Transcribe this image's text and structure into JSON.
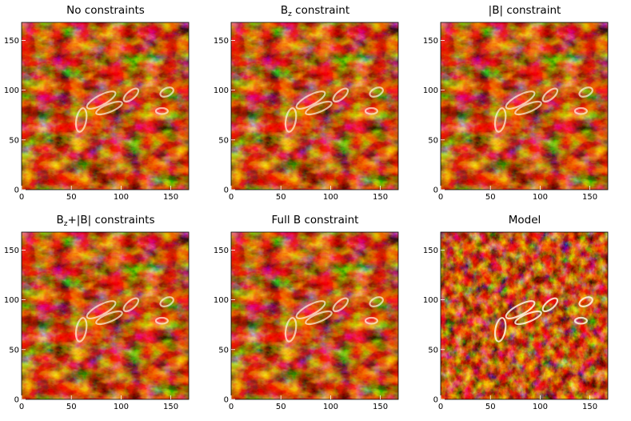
{
  "figure": {
    "colormap": [
      "#000000",
      "#3a0000",
      "#7a0d00",
      "#b52800",
      "#e05a00",
      "#f59a3a",
      "#fddcb0",
      "#ffffff"
    ]
  },
  "chart_data": [
    {
      "type": "heatmap",
      "title_main": "No constraints",
      "title_sub": "",
      "title_rest": "",
      "xlim": [
        0,
        168
      ],
      "ylim": [
        0,
        168
      ],
      "xticks": [
        "0",
        "50",
        "100",
        "150"
      ],
      "yticks": [
        "0",
        "50",
        "100",
        "150"
      ],
      "grid": false
    },
    {
      "type": "heatmap",
      "title_main": "B",
      "title_sub": "z",
      "title_rest": " constraint",
      "xlim": [
        0,
        168
      ],
      "ylim": [
        0,
        168
      ],
      "xticks": [
        "0",
        "50",
        "100",
        "150"
      ],
      "yticks": [
        "0",
        "50",
        "100",
        "150"
      ],
      "grid": false
    },
    {
      "type": "heatmap",
      "title_main": "|B| constraint",
      "title_sub": "",
      "title_rest": "",
      "xlim": [
        0,
        168
      ],
      "ylim": [
        0,
        168
      ],
      "xticks": [
        "0",
        "50",
        "100",
        "150"
      ],
      "yticks": [
        "0",
        "50",
        "100",
        "150"
      ],
      "grid": false
    },
    {
      "type": "heatmap",
      "title_main": "B",
      "title_sub": "z",
      "title_rest": "+|B| constraints",
      "xlim": [
        0,
        168
      ],
      "ylim": [
        0,
        168
      ],
      "xticks": [
        "0",
        "50",
        "100",
        "150"
      ],
      "yticks": [
        "0",
        "50",
        "100",
        "150"
      ],
      "grid": false
    },
    {
      "type": "heatmap",
      "title_main": "Full B constraint",
      "title_sub": "",
      "title_rest": "",
      "xlim": [
        0,
        168
      ],
      "ylim": [
        0,
        168
      ],
      "xticks": [
        "0",
        "50",
        "100",
        "150"
      ],
      "yticks": [
        "0",
        "50",
        "100",
        "150"
      ],
      "grid": false
    },
    {
      "type": "heatmap",
      "title_main": "Model",
      "title_sub": "",
      "title_rest": "",
      "xlim": [
        0,
        168
      ],
      "ylim": [
        0,
        168
      ],
      "xticks": [
        "0",
        "50",
        "100",
        "150"
      ],
      "yticks": [
        "0",
        "50",
        "100",
        "150"
      ],
      "grid": false
    }
  ]
}
